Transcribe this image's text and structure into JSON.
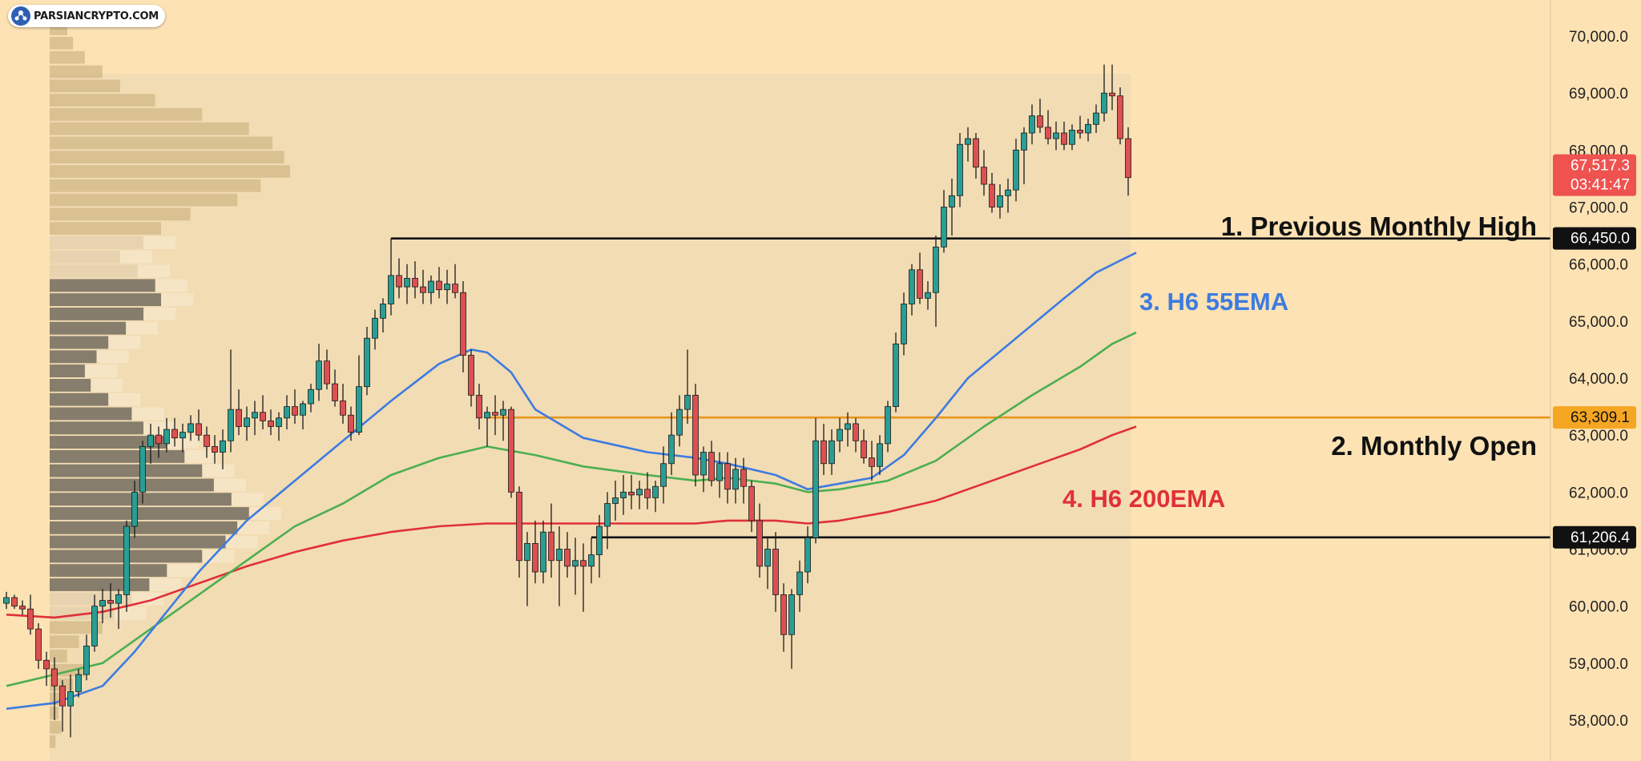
{
  "brand": {
    "name": "PARSIANCRYPTO.COM",
    "icon": "parsiancrypto-logo-icon"
  },
  "colors": {
    "background": "#fde2b4",
    "range_shade": "#f2dcb4",
    "candle_up": "#2a9d94",
    "candle_down": "#dc5052",
    "wick": "#1a1a1a",
    "ema55": "#3d7be0",
    "ema_green": "#4caf50",
    "ema200": "#e0303a",
    "monthly_open": "#e8961f",
    "level_black": "#111111",
    "vp_dark": "#3b3424",
    "vp_light": "#d1b887"
  },
  "chart_data": {
    "type": "candlestick",
    "symbol_timeframe": "H6",
    "ylim": [
      57300,
      70700
    ],
    "y_ticks": [
      "70,000.0",
      "69,000.0",
      "68,000.0",
      "67,000.0",
      "66,000.0",
      "65,000.0",
      "64,000.0",
      "63,000.0",
      "62,000.0",
      "61,000.0",
      "60,000.0",
      "59,000.0",
      "58,000.0"
    ],
    "y_tick_values": [
      70000,
      69000,
      68000,
      67000,
      66000,
      65000,
      64000,
      63000,
      62000,
      61000,
      60000,
      59000,
      58000
    ],
    "last_price": {
      "price": "67,517.3",
      "countdown": "03:41:47",
      "value": 67517.3
    },
    "levels": [
      {
        "name": "previous-monthly-high",
        "label": "1. Previous Monthly High",
        "price": 66450.0,
        "price_label": "66,450.0",
        "color": "#111111",
        "start_index": 48
      },
      {
        "name": "monthly-open",
        "label": "2. Monthly Open",
        "price": 63309.1,
        "price_label": "63,309.1",
        "color": "#e8961f",
        "start_index": 60
      },
      {
        "name": "support-level",
        "label": "",
        "price": 61206.4,
        "price_label": "61,206.4",
        "color": "#111111",
        "start_index": 73
      }
    ],
    "series_labels": [
      {
        "name": "ema55-label",
        "text": "3. H6 55EMA",
        "color": "#3d7be0"
      },
      {
        "name": "ema200-label",
        "text": "4. H6 200EMA",
        "color": "#e0303a"
      }
    ],
    "candles": [
      [
        60050,
        60250,
        59950,
        60150
      ],
      [
        60150,
        60200,
        59950,
        60000
      ],
      [
        60000,
        60100,
        59850,
        59950
      ],
      [
        59950,
        60200,
        59500,
        59600
      ],
      [
        59600,
        59700,
        58900,
        59050
      ],
      [
        59050,
        59200,
        58600,
        58900
      ],
      [
        58900,
        59100,
        58000,
        58600
      ],
      [
        58600,
        58700,
        57800,
        58250
      ],
      [
        58250,
        58800,
        57700,
        58500
      ],
      [
        58500,
        58900,
        58400,
        58800
      ],
      [
        58800,
        59500,
        58700,
        59300
      ],
      [
        59300,
        60200,
        59200,
        60000
      ],
      [
        60000,
        60300,
        59700,
        60100
      ],
      [
        60100,
        60400,
        59800,
        60050
      ],
      [
        60050,
        60300,
        59600,
        60200
      ],
      [
        60200,
        61500,
        59900,
        61400
      ],
      [
        61400,
        62200,
        61200,
        62000
      ],
      [
        62000,
        62900,
        61800,
        62800
      ],
      [
        62800,
        63200,
        62500,
        63000
      ],
      [
        63000,
        63150,
        62600,
        62850
      ],
      [
        62850,
        63300,
        62700,
        63100
      ],
      [
        63100,
        63300,
        62800,
        62950
      ],
      [
        62950,
        63200,
        62700,
        63050
      ],
      [
        63050,
        63350,
        62900,
        63200
      ],
      [
        63200,
        63450,
        62900,
        63000
      ],
      [
        63000,
        63150,
        62600,
        62800
      ],
      [
        62800,
        63000,
        62500,
        62700
      ],
      [
        62700,
        63100,
        62400,
        62900
      ],
      [
        62900,
        64500,
        62700,
        63450
      ],
      [
        63450,
        63800,
        63000,
        63150
      ],
      [
        63150,
        63500,
        62900,
        63300
      ],
      [
        63300,
        63600,
        63000,
        63400
      ],
      [
        63400,
        63700,
        63100,
        63250
      ],
      [
        63250,
        63450,
        63000,
        63150
      ],
      [
        63150,
        63400,
        62900,
        63300
      ],
      [
        63300,
        63700,
        63100,
        63500
      ],
      [
        63500,
        63800,
        63200,
        63350
      ],
      [
        63350,
        63600,
        63100,
        63550
      ],
      [
        63550,
        63900,
        63400,
        63800
      ],
      [
        63800,
        64600,
        63600,
        64300
      ],
      [
        64300,
        64500,
        63800,
        63900
      ],
      [
        63900,
        64150,
        63500,
        63600
      ],
      [
        63600,
        63900,
        63200,
        63350
      ],
      [
        63350,
        63500,
        62900,
        63050
      ],
      [
        63050,
        64400,
        63000,
        63850
      ],
      [
        63850,
        64900,
        63700,
        64700
      ],
      [
        64700,
        65200,
        64500,
        65050
      ],
      [
        65050,
        65400,
        64800,
        65300
      ],
      [
        65300,
        66450,
        65100,
        65800
      ],
      [
        65800,
        66100,
        65400,
        65600
      ],
      [
        65600,
        66000,
        65300,
        65750
      ],
      [
        65750,
        66050,
        65400,
        65600
      ],
      [
        65600,
        65900,
        65300,
        65500
      ],
      [
        65500,
        65800,
        65300,
        65700
      ],
      [
        65700,
        65950,
        65400,
        65550
      ],
      [
        65550,
        65900,
        65300,
        65650
      ],
      [
        65650,
        66000,
        65400,
        65500
      ],
      [
        65500,
        65700,
        64100,
        64400
      ],
      [
        64400,
        64500,
        63500,
        63700
      ],
      [
        63700,
        63900,
        63100,
        63300
      ],
      [
        63300,
        63500,
        62800,
        63400
      ],
      [
        63400,
        63700,
        63000,
        63350
      ],
      [
        63350,
        63600,
        62900,
        63450
      ],
      [
        63450,
        63500,
        61900,
        62000
      ],
      [
        62000,
        62100,
        60500,
        60800
      ],
      [
        60800,
        61300,
        60000,
        61100
      ],
      [
        61100,
        61500,
        60400,
        60600
      ],
      [
        60600,
        61500,
        60400,
        61300
      ],
      [
        61300,
        61800,
        60500,
        60800
      ],
      [
        60800,
        61400,
        60000,
        61000
      ],
      [
        61000,
        61300,
        60500,
        60700
      ],
      [
        60700,
        61200,
        60200,
        60800
      ],
      [
        60800,
        61100,
        59900,
        60700
      ],
      [
        60700,
        61200,
        60400,
        60900
      ],
      [
        60900,
        61600,
        60500,
        61400
      ],
      [
        61400,
        62000,
        61000,
        61800
      ],
      [
        61800,
        62200,
        61500,
        61900
      ],
      [
        61900,
        62300,
        61600,
        62000
      ],
      [
        62000,
        62300,
        61700,
        61950
      ],
      [
        61950,
        62200,
        61700,
        62050
      ],
      [
        62050,
        62350,
        61700,
        61900
      ],
      [
        61900,
        62200,
        61650,
        62100
      ],
      [
        62100,
        62800,
        61800,
        62500
      ],
      [
        62500,
        63400,
        62300,
        63000
      ],
      [
        63000,
        63700,
        62800,
        63450
      ],
      [
        63450,
        64500,
        63200,
        63700
      ],
      [
        63700,
        63900,
        62100,
        62300
      ],
      [
        62300,
        62800,
        62000,
        62700
      ],
      [
        62700,
        62900,
        62100,
        62200
      ],
      [
        62200,
        62700,
        61900,
        62500
      ],
      [
        62500,
        62700,
        61800,
        62050
      ],
      [
        62050,
        62600,
        61800,
        62400
      ],
      [
        62400,
        62600,
        61800,
        62100
      ],
      [
        62100,
        62200,
        61300,
        61500
      ],
      [
        61500,
        61800,
        60500,
        60700
      ],
      [
        60700,
        61200,
        60300,
        61000
      ],
      [
        61000,
        61300,
        59900,
        60200
      ],
      [
        60200,
        60400,
        59200,
        59500
      ],
      [
        59500,
        60300,
        58900,
        60200
      ],
      [
        60200,
        60800,
        59900,
        60600
      ],
      [
        60600,
        61400,
        60400,
        61200
      ],
      [
        61200,
        63300,
        61100,
        62900
      ],
      [
        62900,
        63200,
        62300,
        62500
      ],
      [
        62500,
        63100,
        62300,
        62900
      ],
      [
        62900,
        63300,
        62700,
        63100
      ],
      [
        63100,
        63400,
        62800,
        63200
      ],
      [
        63200,
        63300,
        62700,
        62900
      ],
      [
        62900,
        63100,
        62500,
        62600
      ],
      [
        62600,
        62900,
        62200,
        62450
      ],
      [
        62450,
        63000,
        62300,
        62850
      ],
      [
        62850,
        63600,
        62700,
        63500
      ],
      [
        63500,
        64800,
        63400,
        64600
      ],
      [
        64600,
        65500,
        64400,
        65300
      ],
      [
        65300,
        66000,
        65100,
        65900
      ],
      [
        65900,
        66200,
        65300,
        65400
      ],
      [
        65400,
        65700,
        65200,
        65500
      ],
      [
        65500,
        66500,
        64900,
        66300
      ],
      [
        66300,
        67300,
        66200,
        67000
      ],
      [
        67000,
        67500,
        66500,
        67200
      ],
      [
        67200,
        68300,
        67000,
        68100
      ],
      [
        68100,
        68400,
        67800,
        68200
      ],
      [
        68200,
        68300,
        67500,
        67700
      ],
      [
        67700,
        68000,
        67200,
        67400
      ],
      [
        67400,
        67600,
        66900,
        67000
      ],
      [
        67000,
        67400,
        66800,
        67200
      ],
      [
        67200,
        67500,
        66900,
        67300
      ],
      [
        67300,
        68200,
        67100,
        68000
      ],
      [
        68000,
        68400,
        67400,
        68300
      ],
      [
        68300,
        68800,
        68100,
        68600
      ],
      [
        68600,
        68900,
        68300,
        68400
      ],
      [
        68400,
        68700,
        68100,
        68200
      ],
      [
        68200,
        68500,
        68000,
        68300
      ],
      [
        68300,
        68500,
        68000,
        68100
      ],
      [
        68100,
        68450,
        68000,
        68350
      ],
      [
        68350,
        68600,
        68200,
        68300
      ],
      [
        68300,
        68550,
        68150,
        68450
      ],
      [
        68450,
        68800,
        68300,
        68650
      ],
      [
        68650,
        69500,
        68500,
        69000
      ],
      [
        69000,
        69500,
        68700,
        68950
      ],
      [
        68950,
        69100,
        68100,
        68200
      ],
      [
        68200,
        68400,
        67200,
        67517.3
      ]
    ],
    "ema55": [
      [
        0,
        58200
      ],
      [
        6,
        58300
      ],
      [
        12,
        58600
      ],
      [
        16,
        59200
      ],
      [
        20,
        59900
      ],
      [
        24,
        60600
      ],
      [
        30,
        61500
      ],
      [
        36,
        62200
      ],
      [
        42,
        62900
      ],
      [
        48,
        63600
      ],
      [
        54,
        64250
      ],
      [
        58,
        64500
      ],
      [
        60,
        64450
      ],
      [
        63,
        64100
      ],
      [
        66,
        63450
      ],
      [
        72,
        62950
      ],
      [
        80,
        62700
      ],
      [
        86,
        62600
      ],
      [
        90,
        62500
      ],
      [
        96,
        62300
      ],
      [
        100,
        62050
      ],
      [
        104,
        62150
      ],
      [
        108,
        62250
      ],
      [
        112,
        62650
      ],
      [
        116,
        63300
      ],
      [
        120,
        64000
      ],
      [
        126,
        64700
      ],
      [
        132,
        65400
      ],
      [
        136,
        65850
      ],
      [
        141,
        66200
      ]
    ],
    "ema_green": [
      [
        0,
        58600
      ],
      [
        6,
        58800
      ],
      [
        12,
        59000
      ],
      [
        18,
        59600
      ],
      [
        24,
        60200
      ],
      [
        30,
        60800
      ],
      [
        36,
        61400
      ],
      [
        42,
        61800
      ],
      [
        48,
        62300
      ],
      [
        54,
        62600
      ],
      [
        60,
        62800
      ],
      [
        66,
        62650
      ],
      [
        72,
        62450
      ],
      [
        80,
        62300
      ],
      [
        86,
        62200
      ],
      [
        90,
        62250
      ],
      [
        96,
        62150
      ],
      [
        100,
        62000
      ],
      [
        104,
        62050
      ],
      [
        110,
        62200
      ],
      [
        116,
        62550
      ],
      [
        122,
        63150
      ],
      [
        128,
        63700
      ],
      [
        134,
        64200
      ],
      [
        138,
        64600
      ],
      [
        141,
        64800
      ]
    ],
    "ema200": [
      [
        0,
        59850
      ],
      [
        6,
        59800
      ],
      [
        12,
        59900
      ],
      [
        18,
        60100
      ],
      [
        24,
        60400
      ],
      [
        30,
        60700
      ],
      [
        36,
        60950
      ],
      [
        42,
        61150
      ],
      [
        48,
        61300
      ],
      [
        54,
        61400
      ],
      [
        60,
        61450
      ],
      [
        66,
        61450
      ],
      [
        72,
        61450
      ],
      [
        80,
        61450
      ],
      [
        86,
        61450
      ],
      [
        90,
        61500
      ],
      [
        96,
        61500
      ],
      [
        100,
        61450
      ],
      [
        104,
        61500
      ],
      [
        110,
        61650
      ],
      [
        116,
        61850
      ],
      [
        122,
        62150
      ],
      [
        128,
        62450
      ],
      [
        134,
        62750
      ],
      [
        138,
        63000
      ],
      [
        141,
        63150
      ]
    ],
    "volume_profile": {
      "price_low": 57500,
      "price_high": 70500,
      "bins": 52,
      "volumes": [
        0.1,
        0.2,
        0.15,
        0.25,
        0.4,
        0.6,
        0.3,
        0.5,
        0.9,
        1.1,
        1.4,
        1.7,
        2.0,
        2.6,
        3.0,
        3.2,
        3.4,
        3.1,
        2.8,
        2.6,
        2.3,
        2.0,
        1.6,
        1.4,
        1.0,
        0.7,
        0.6,
        0.8,
        1.0,
        1.3,
        1.6,
        1.9,
        1.8,
        1.5,
        1.2,
        1.6,
        1.9,
        2.4,
        3.2,
        3.6,
        4.1,
        4.0,
        3.8,
        3.4,
        2.6,
        1.8,
        1.2,
        0.9,
        0.6,
        0.4,
        0.3,
        0.2
      ]
    }
  }
}
